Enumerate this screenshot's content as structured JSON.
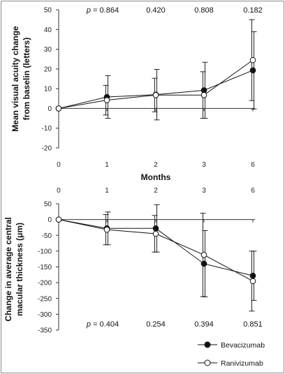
{
  "chart_data": [
    {
      "type": "line",
      "xlabel": "Months",
      "ylabel": "Mean visual acuity change from baselin (letters)",
      "ylabel_lines": [
        "Mean visual acuity change",
        "from baselin (letters)"
      ],
      "categories": [
        "0",
        "1",
        "2",
        "3",
        "6"
      ],
      "ylim": [
        -20,
        50
      ],
      "yticks": [
        -20,
        -10,
        0,
        10,
        20,
        30,
        40,
        50
      ],
      "p_prefix": "p",
      "p_values": [
        "0.864",
        "0.420",
        "0.808",
        "0.182"
      ],
      "series": [
        {
          "name": "Bevacizumab",
          "values": [
            0,
            5.8,
            7.0,
            9.2,
            19.3
          ],
          "error": [
            0,
            10.8,
            12.8,
            14.2,
            19.6
          ]
        },
        {
          "name": "Ranivizumab",
          "values": [
            0,
            4.2,
            6.8,
            6.8,
            24.5
          ],
          "error": [
            0,
            7.5,
            8.5,
            11.8,
            20.5
          ]
        }
      ]
    },
    {
      "type": "line",
      "xlabel": "",
      "ylabel": "Change in average central macular thickness (μm)",
      "ylabel_lines": [
        "Change in average central",
        "macular thickness (μm)"
      ],
      "categories": [
        "0",
        "1",
        "2",
        "3",
        "6"
      ],
      "ylim": [
        -350,
        50
      ],
      "yticks": [
        -350,
        -300,
        -250,
        -200,
        -150,
        -100,
        -50,
        0,
        50
      ],
      "p_prefix": "p",
      "p_values": [
        "0.404",
        "0.254",
        "0.394",
        "0.851"
      ],
      "series": [
        {
          "name": "Bevacizumab",
          "values": [
            0,
            -28,
            -28,
            -140,
            -178
          ],
          "error": [
            0,
            52,
            75,
            105,
            78
          ]
        },
        {
          "name": "Ranivizumab",
          "values": [
            0,
            -32,
            -45,
            -112,
            -195
          ],
          "error": [
            0,
            48,
            58,
            132,
            95
          ]
        }
      ]
    }
  ],
  "legend": {
    "items": [
      {
        "label": "Bevacizumab",
        "marker": "filled-circle"
      },
      {
        "label": "Ranivizumab",
        "marker": "open-circle"
      }
    ],
    "placement": "bottom-right"
  }
}
